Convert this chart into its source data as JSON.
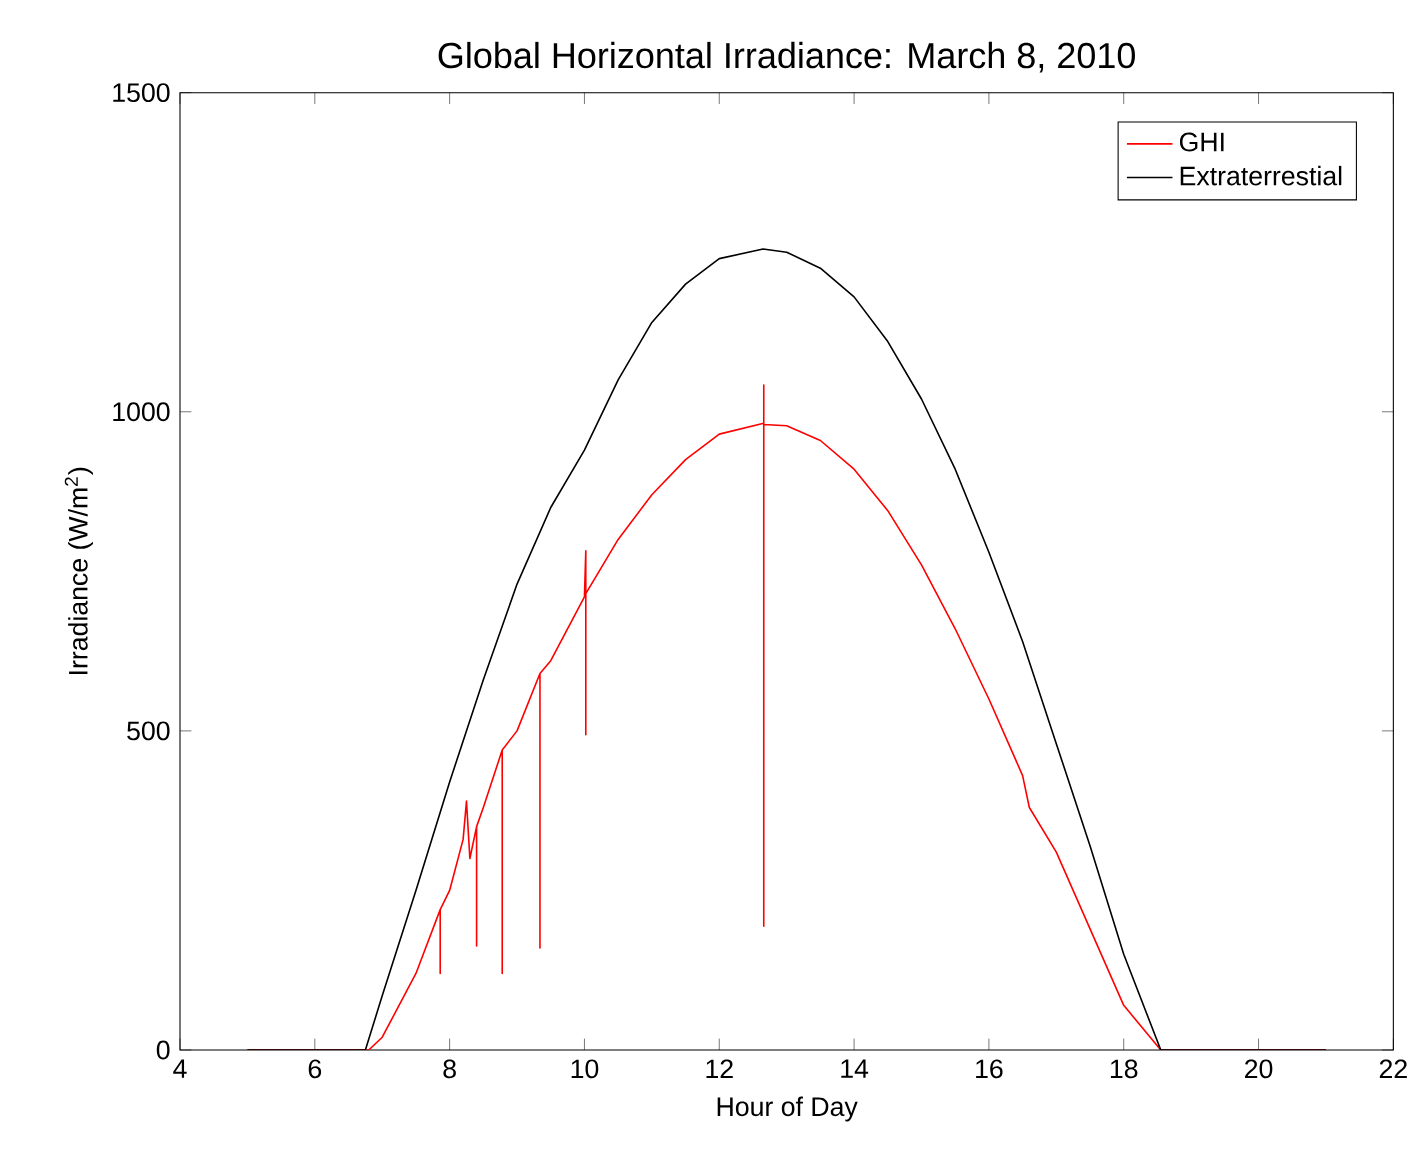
{
  "chart_data": {
    "type": "line",
    "title": "Global Horizontal Irradiance: March 8, 2010",
    "xlabel": "Hour of Day",
    "ylabel": "Irradiance (W/m$^{2}$)",
    "xlim": [
      4,
      22
    ],
    "ylim": [
      0,
      1500
    ],
    "xticks": [
      4,
      6,
      8,
      10,
      12,
      14,
      16,
      18,
      20,
      22
    ],
    "yticks": [
      0,
      500,
      1000,
      1500
    ],
    "legend": "top right",
    "series": [
      {
        "name": "GHI",
        "color": "#ff0000",
        "x": [
          5,
          6.8,
          7,
          7.5,
          7.86,
          7.86,
          7.86,
          8,
          8.2,
          8.25,
          8.3,
          8.4,
          8.4,
          8.4,
          8.5,
          8.78,
          8.78,
          8.78,
          9,
          9.34,
          9.34,
          9.34,
          9.5,
          10,
          10.02,
          10.02,
          10.02,
          10.5,
          11,
          11.5,
          12,
          12.66,
          12.66,
          12.66,
          12.66,
          13,
          13.5,
          14,
          14.5,
          15,
          15.5,
          16,
          16.5,
          16.6,
          17,
          17.5,
          18,
          18.55,
          21
        ],
        "values": [
          0,
          0,
          20,
          120,
          220,
          120,
          220,
          250,
          330,
          390,
          300,
          350,
          163,
          350,
          380,
          470,
          120,
          470,
          500,
          590,
          160,
          590,
          610,
          710,
          782,
          494,
          715,
          800,
          870,
          925,
          965,
          982,
          1042,
          194,
          980,
          978,
          955,
          910,
          845,
          760,
          660,
          550,
          430,
          380,
          310,
          190,
          70,
          0,
          0
        ]
      },
      {
        "name": "Extraterrestial",
        "color": "#000000",
        "x": [
          5,
          6.75,
          7,
          7.5,
          8,
          8.5,
          9,
          9.5,
          10,
          10.5,
          11,
          11.5,
          12,
          12.65,
          13,
          13.5,
          14,
          14.5,
          15,
          15.5,
          16,
          16.5,
          17,
          17.5,
          18,
          18.55,
          21
        ],
        "values": [
          0,
          0,
          85,
          250,
          420,
          580,
          730,
          850,
          940,
          1050,
          1140,
          1200,
          1240,
          1255,
          1250,
          1225,
          1180,
          1110,
          1020,
          910,
          780,
          640,
          480,
          320,
          150,
          0,
          0
        ]
      }
    ]
  }
}
